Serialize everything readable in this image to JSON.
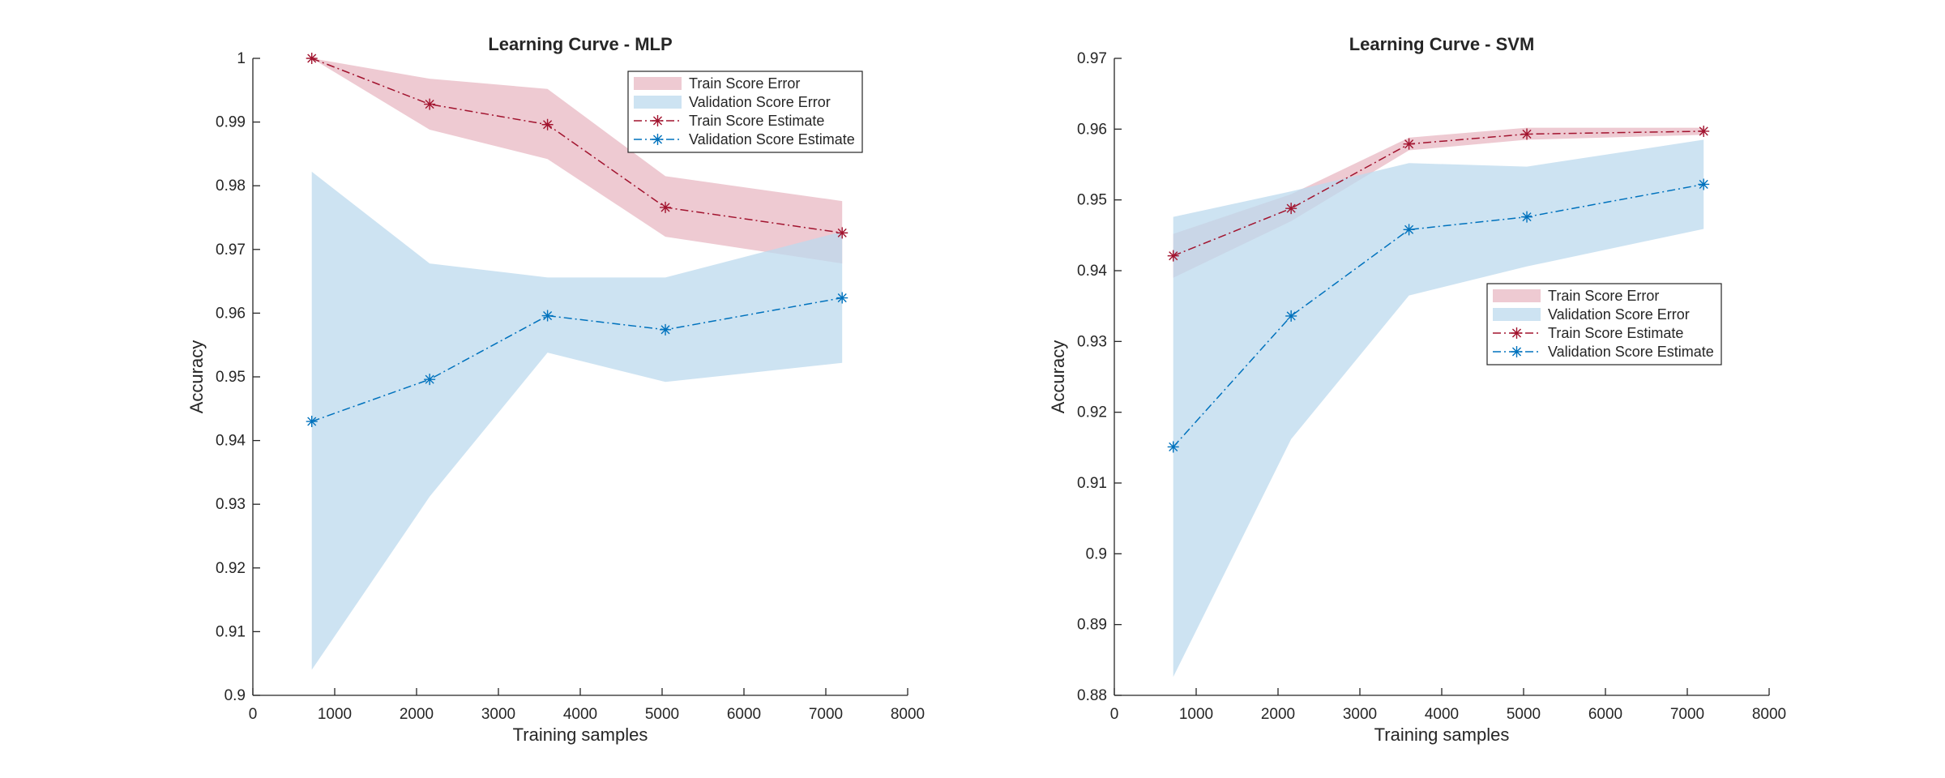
{
  "chart_data": [
    {
      "type": "line",
      "title": "Learning Curve - MLP",
      "xlabel": "Training samples",
      "ylabel": "Accuracy",
      "xlim": [
        0,
        8000
      ],
      "ylim": [
        0.9,
        1.0
      ],
      "xticks": [
        0,
        1000,
        2000,
        3000,
        4000,
        5000,
        6000,
        7000,
        8000
      ],
      "yticks": [
        0.9,
        0.91,
        0.92,
        0.93,
        0.94,
        0.95,
        0.96,
        0.97,
        0.98,
        0.99,
        1.0
      ],
      "xtick_labels": [
        "0",
        "1000",
        "2000",
        "3000",
        "4000",
        "5000",
        "6000",
        "7000",
        "8000"
      ],
      "ytick_labels": [
        "0.9",
        "0.91",
        "0.92",
        "0.93",
        "0.94",
        "0.95",
        "0.96",
        "0.97",
        "0.98",
        "0.99",
        "1"
      ],
      "grid": false,
      "legend_position": "top-right",
      "x": [
        720,
        2160,
        3600,
        5040,
        7200
      ],
      "bands": [
        {
          "name": "Train Score Error",
          "color": "#e8b8c3",
          "opacity": 0.75,
          "lower": [
            1.0,
            0.9888,
            0.9842,
            0.972,
            0.9678
          ],
          "upper": [
            1.0,
            0.9968,
            0.9952,
            0.9815,
            0.9776
          ]
        },
        {
          "name": "Validation Score Error",
          "color": "#bcdaee",
          "opacity": 0.75,
          "lower": [
            0.904,
            0.9312,
            0.9538,
            0.9492,
            0.9522
          ],
          "upper": [
            0.9822,
            0.9678,
            0.9656,
            0.9656,
            0.9728
          ]
        }
      ],
      "series": [
        {
          "name": "Train Score Estimate",
          "color": "#a2142f",
          "values": [
            1.0,
            0.9928,
            0.9896,
            0.9766,
            0.9726
          ]
        },
        {
          "name": "Validation Score Estimate",
          "color": "#0072bd",
          "values": [
            0.943,
            0.9496,
            0.9596,
            0.9574,
            0.9624
          ]
        }
      ]
    },
    {
      "type": "line",
      "title": "Learning Curve - SVM",
      "xlabel": "Training samples",
      "ylabel": "Accuracy",
      "xlim": [
        0,
        8000
      ],
      "ylim": [
        0.88,
        0.97
      ],
      "xticks": [
        0,
        1000,
        2000,
        3000,
        4000,
        5000,
        6000,
        7000,
        8000
      ],
      "yticks": [
        0.88,
        0.89,
        0.9,
        0.91,
        0.92,
        0.93,
        0.94,
        0.95,
        0.96,
        0.97
      ],
      "xtick_labels": [
        "0",
        "1000",
        "2000",
        "3000",
        "4000",
        "5000",
        "6000",
        "7000",
        "8000"
      ],
      "ytick_labels": [
        "0.88",
        "0.89",
        "0.9",
        "0.91",
        "0.92",
        "0.93",
        "0.94",
        "0.95",
        "0.96",
        "0.97"
      ],
      "grid": false,
      "legend_position": "center-right",
      "x": [
        720,
        2160,
        3600,
        5040,
        7200
      ],
      "bands": [
        {
          "name": "Train Score Error",
          "color": "#e8b8c3",
          "opacity": 0.75,
          "lower": [
            0.939,
            0.947,
            0.957,
            0.9585,
            0.9592
          ],
          "upper": [
            0.9452,
            0.9508,
            0.9588,
            0.9602,
            0.9602
          ]
        },
        {
          "name": "Validation Score Error",
          "color": "#bcdaee",
          "opacity": 0.75,
          "lower": [
            0.8826,
            0.9162,
            0.9365,
            0.9406,
            0.9459
          ],
          "upper": [
            0.9476,
            0.9512,
            0.9552,
            0.9547,
            0.9585
          ]
        }
      ],
      "series": [
        {
          "name": "Train Score Estimate",
          "color": "#a2142f",
          "values": [
            0.9421,
            0.9488,
            0.9579,
            0.9593,
            0.9597
          ]
        },
        {
          "name": "Validation Score Estimate",
          "color": "#0072bd",
          "values": [
            0.9151,
            0.9336,
            0.9458,
            0.9476,
            0.9522
          ]
        }
      ]
    }
  ]
}
